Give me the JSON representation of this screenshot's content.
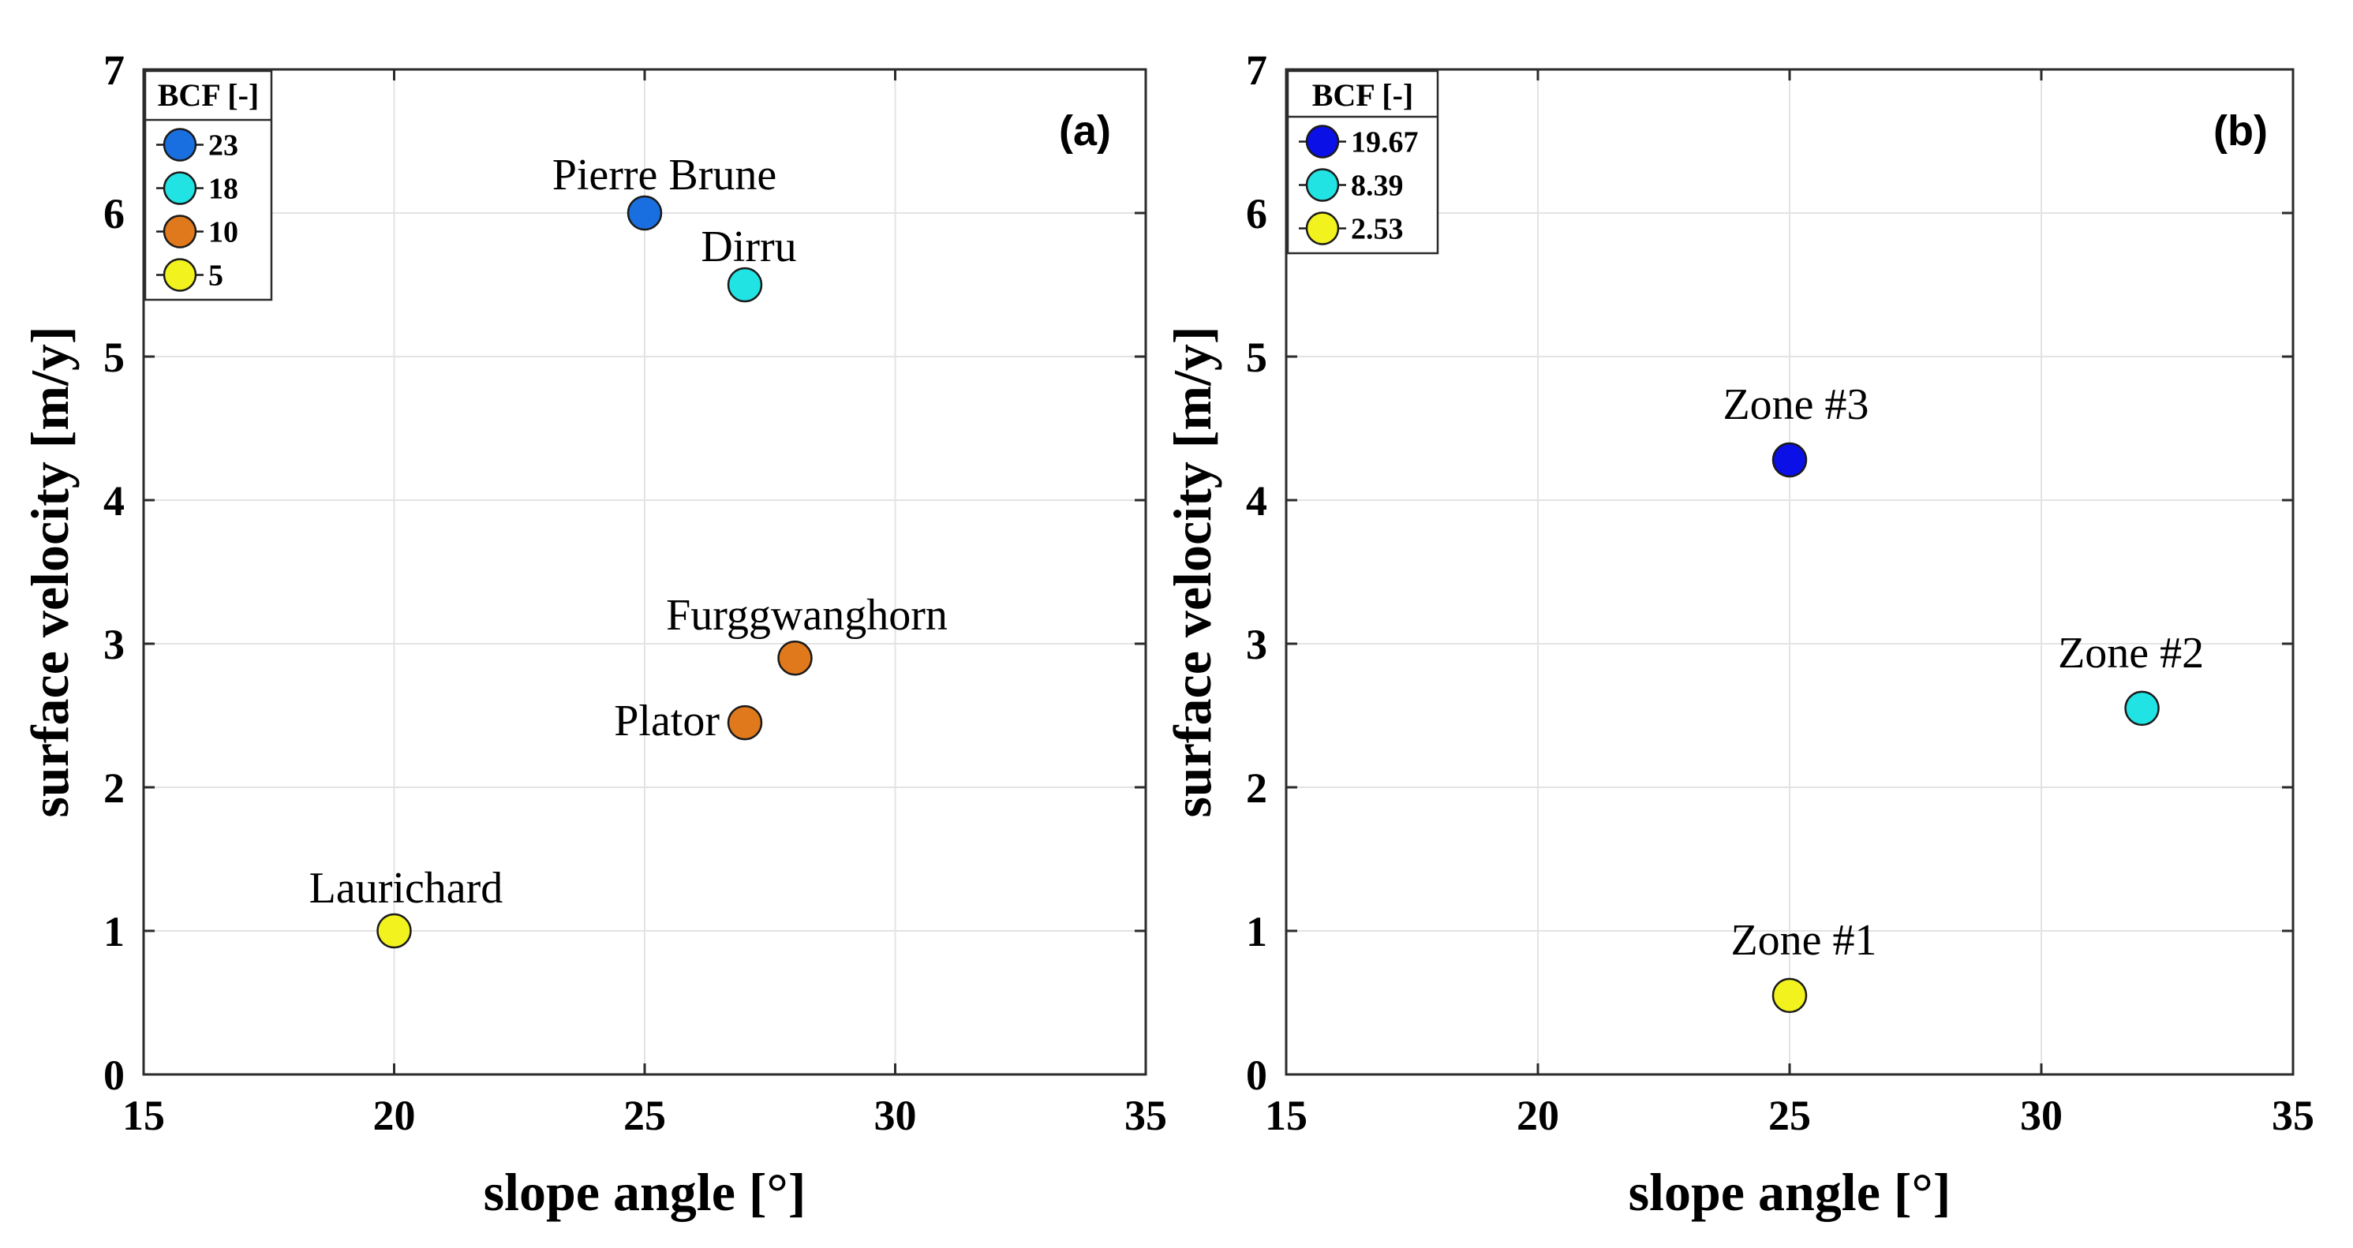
{
  "chart_data": [
    {
      "type": "scatter",
      "panel_label": "(a)",
      "xlabel": "slope angle [°]",
      "ylabel": "surface velocity [m/y]",
      "xlim": [
        15,
        35
      ],
      "ylim": [
        0,
        7
      ],
      "xticks": [
        15,
        20,
        25,
        30,
        35
      ],
      "yticks": [
        0,
        1,
        2,
        3,
        4,
        5,
        6,
        7
      ],
      "grid": true,
      "legend": {
        "title": "BCF [-]",
        "placement": "top-left",
        "entries": [
          {
            "label": "23",
            "color": "#1a6fe0"
          },
          {
            "label": "18",
            "color": "#22e3e3"
          },
          {
            "label": "10",
            "color": "#e0781c"
          },
          {
            "label": "5",
            "color": "#f2f21e"
          }
        ]
      },
      "points": [
        {
          "label": "Pierre Brune",
          "x": 25,
          "y": 6.0,
          "bcf": "23",
          "color": "#1a6fe0"
        },
        {
          "label": "Dirru",
          "x": 27,
          "y": 5.5,
          "bcf": "18",
          "color": "#22e3e3"
        },
        {
          "label": "Furggwanghorn",
          "x": 28,
          "y": 2.9,
          "bcf": "10",
          "color": "#e0781c"
        },
        {
          "label": "Plator",
          "x": 27,
          "y": 2.45,
          "bcf": "10",
          "color": "#e0781c"
        },
        {
          "label": "Laurichard",
          "x": 20,
          "y": 1.0,
          "bcf": "5",
          "color": "#f2f21e"
        }
      ]
    },
    {
      "type": "scatter",
      "panel_label": "(b)",
      "xlabel": "slope angle [°]",
      "ylabel": "surface velocity [m/y]",
      "xlim": [
        15,
        35
      ],
      "ylim": [
        0,
        7
      ],
      "xticks": [
        15,
        20,
        25,
        30,
        35
      ],
      "yticks": [
        0,
        1,
        2,
        3,
        4,
        5,
        6,
        7
      ],
      "grid": true,
      "legend": {
        "title": "BCF [-]",
        "placement": "top-left",
        "entries": [
          {
            "label": "19.67",
            "color": "#0a10e6"
          },
          {
            "label": "8.39",
            "color": "#22e3e3"
          },
          {
            "label": "2.53",
            "color": "#f2f21e"
          }
        ]
      },
      "points": [
        {
          "label": "Zone #3",
          "x": 25,
          "y": 4.28,
          "bcf": "19.67",
          "color": "#0a10e6"
        },
        {
          "label": "Zone #2",
          "x": 32,
          "y": 2.55,
          "bcf": "8.39",
          "color": "#22e3e3"
        },
        {
          "label": "Zone #1",
          "x": 25,
          "y": 0.55,
          "bcf": "2.53",
          "color": "#f2f21e"
        }
      ]
    }
  ]
}
